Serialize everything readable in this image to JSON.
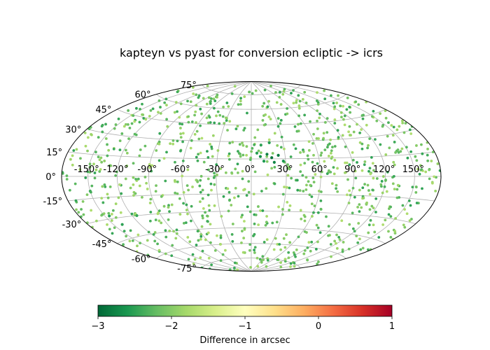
{
  "chart_data": {
    "type": "scatter",
    "projection": "hammer (all-sky)",
    "title": "kapteyn vs pyast for conversion ecliptic -> icrs",
    "lon_ticks": [
      {
        "value": -150,
        "label": "-150°"
      },
      {
        "value": -120,
        "label": "-120°"
      },
      {
        "value": -90,
        "label": "-90°"
      },
      {
        "value": -60,
        "label": "-60°"
      },
      {
        "value": -30,
        "label": "-30°"
      },
      {
        "value": 0,
        "label": "0°"
      },
      {
        "value": 30,
        "label": "30°"
      },
      {
        "value": 60,
        "label": "60°"
      },
      {
        "value": 90,
        "label": "90°"
      },
      {
        "value": 120,
        "label": "120°"
      },
      {
        "value": 150,
        "label": "150°"
      }
    ],
    "lat_ticks": [
      {
        "value": 75,
        "label": "75°"
      },
      {
        "value": 60,
        "label": "60°"
      },
      {
        "value": 45,
        "label": "45°"
      },
      {
        "value": 30,
        "label": "30°"
      },
      {
        "value": 15,
        "label": "15°"
      },
      {
        "value": 0,
        "label": "0°"
      },
      {
        "value": -15,
        "label": "-15°"
      },
      {
        "value": -30,
        "label": "-30°"
      },
      {
        "value": -45,
        "label": "-45°"
      },
      {
        "value": -60,
        "label": "-60°"
      },
      {
        "value": -75,
        "label": "-75°"
      }
    ],
    "grid": true,
    "colorbar": {
      "label": "Difference in arcsec",
      "colormap": "RdYlGn_r",
      "range": [
        -3,
        1
      ],
      "ticks": [
        {
          "value": -3,
          "label": "−3"
        },
        {
          "value": -2,
          "label": "−2"
        },
        {
          "value": -1,
          "label": "−1"
        },
        {
          "value": 0,
          "label": "0"
        },
        {
          "value": 1,
          "label": "1"
        }
      ]
    },
    "points_summary": "approx. 1000 points spread uniformly over the sky, mostly valued between -2.5 and -1.7; a cluster of darker green points near lon 15°, lat 15° with values near -2.9",
    "highlight_points": [
      {
        "lon": 8,
        "lat": 17,
        "value": -2.7
      },
      {
        "lon": 14,
        "lat": 19,
        "value": -2.8
      },
      {
        "lon": 18,
        "lat": 16,
        "value": -2.9
      },
      {
        "lon": 24,
        "lat": 18,
        "value": -2.85
      },
      {
        "lon": 20,
        "lat": 12,
        "value": -2.75
      },
      {
        "lon": 11,
        "lat": 13,
        "value": -2.6
      },
      {
        "lon": 17,
        "lat": 29,
        "value": -2.55
      },
      {
        "lon": 9,
        "lat": 27,
        "value": -2.5
      },
      {
        "lon": 28,
        "lat": 13,
        "value": -2.6
      },
      {
        "lon": 5,
        "lat": 20,
        "value": -2.55
      },
      {
        "lon": -145,
        "lat": -28,
        "value": -2.55
      },
      {
        "lon": -140,
        "lat": -35,
        "value": -2.5
      },
      {
        "lon": -115,
        "lat": -30,
        "value": -2.45
      },
      {
        "lon": -150,
        "lat": -10,
        "value": -2.4
      }
    ]
  }
}
